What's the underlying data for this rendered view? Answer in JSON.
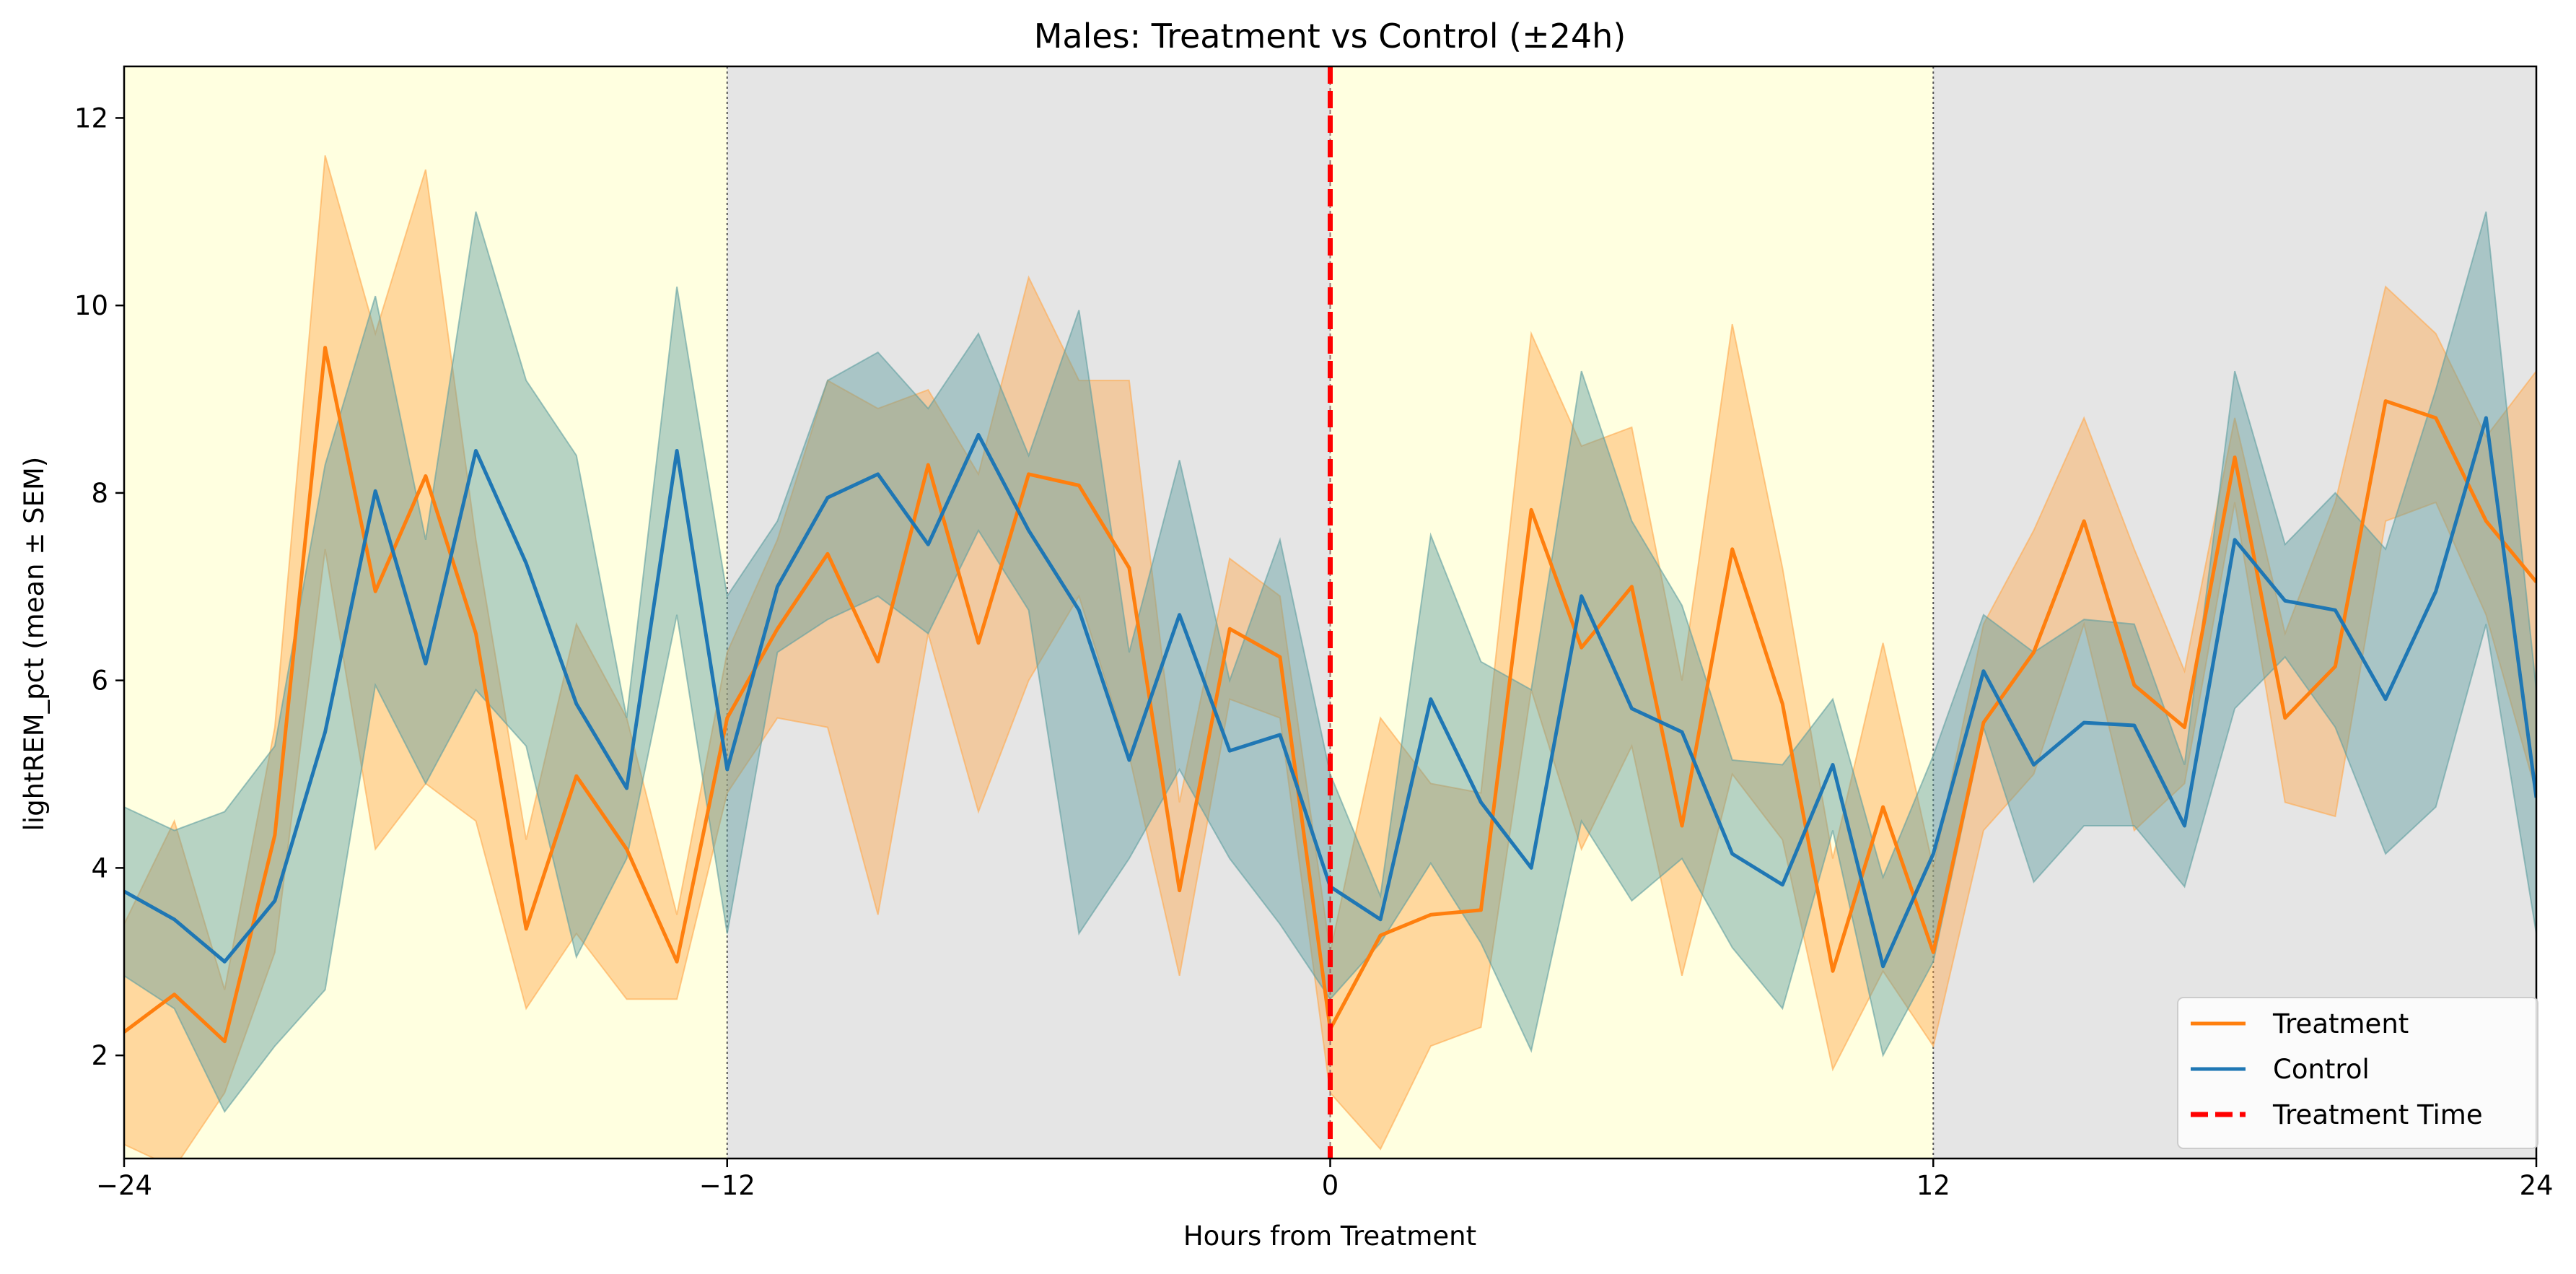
{
  "chart_data": {
    "type": "line",
    "title": "Males: Treatment vs Control (±24h)",
    "xlabel": "Hours from Treatment",
    "ylabel": "lightREM_pct (mean ± SEM)",
    "xlim": [
      -24,
      24
    ],
    "ylim": [
      0.9,
      12.55
    ],
    "xticks": [
      -24,
      -12,
      0,
      12,
      24
    ],
    "xtick_labels": [
      "−24",
      "−12",
      "0",
      "12",
      "24"
    ],
    "yticks": [
      2,
      4,
      6,
      8,
      10,
      12
    ],
    "ytick_labels": [
      "2",
      "4",
      "6",
      "8",
      "10",
      "12"
    ],
    "grid": false,
    "legend_position": "lower-right",
    "background_bands": [
      {
        "phase": "light",
        "x0": -24,
        "x1": -12,
        "color": "#ffffe0"
      },
      {
        "phase": "dark",
        "x0": -12,
        "x1": 0,
        "color": "#e5e5e5"
      },
      {
        "phase": "light",
        "x0": 0,
        "x1": 12,
        "color": "#ffffe0"
      },
      {
        "phase": "dark",
        "x0": 12,
        "x1": 24,
        "color": "#e5e5e5"
      }
    ],
    "x": [
      -24,
      -23,
      -22,
      -21,
      -20,
      -19,
      -18,
      -17,
      -16,
      -15,
      -14,
      -13,
      -12,
      -11,
      -10,
      -9,
      -8,
      -7,
      -6,
      -5,
      -4,
      -3,
      -2,
      -1,
      0,
      1,
      2,
      3,
      4,
      5,
      6,
      7,
      8,
      9,
      10,
      11,
      12,
      13,
      14,
      15,
      16,
      17,
      18,
      19,
      20,
      21,
      22,
      23,
      24
    ],
    "series": [
      {
        "name": "Treatment",
        "color": "#ff7f0e",
        "band_color": "#ffa94d",
        "mean": [
          2.25,
          2.65,
          2.15,
          4.35,
          9.55,
          6.95,
          8.18,
          6.5,
          3.35,
          4.98,
          4.2,
          3.0,
          5.6,
          6.55,
          7.35,
          6.2,
          8.3,
          6.4,
          8.2,
          8.08,
          7.2,
          3.76,
          6.55,
          6.25,
          2.28,
          3.28,
          3.5,
          3.55,
          7.82,
          6.35,
          7.0,
          4.45,
          7.4,
          5.75,
          2.9,
          4.65,
          3.1,
          5.55,
          6.3,
          7.7,
          5.95,
          5.5,
          8.38,
          5.6,
          6.15,
          8.98,
          8.8,
          7.7,
          7.05
        ],
        "upper": [
          3.4,
          4.5,
          2.7,
          5.5,
          11.6,
          9.7,
          11.45,
          7.5,
          4.3,
          6.6,
          5.6,
          3.5,
          6.3,
          7.5,
          9.2,
          8.9,
          9.1,
          8.2,
          10.3,
          9.2,
          9.2,
          4.7,
          7.3,
          6.9,
          3.1,
          5.6,
          4.9,
          4.8,
          9.7,
          8.5,
          8.7,
          6.0,
          9.8,
          7.2,
          4.1,
          6.4,
          4.0,
          6.6,
          7.6,
          8.8,
          7.4,
          6.1,
          8.8,
          6.5,
          7.9,
          10.2,
          9.7,
          8.6,
          9.3
        ],
        "lower": [
          1.05,
          0.8,
          1.6,
          3.1,
          7.4,
          4.2,
          4.9,
          4.5,
          2.5,
          3.3,
          2.6,
          2.6,
          4.8,
          5.6,
          5.5,
          3.5,
          6.5,
          4.6,
          6.0,
          6.9,
          5.2,
          2.85,
          5.8,
          5.6,
          1.6,
          1.0,
          2.1,
          2.3,
          5.9,
          4.2,
          5.3,
          2.85,
          5.0,
          4.3,
          1.85,
          2.9,
          2.1,
          4.4,
          5.0,
          6.6,
          4.4,
          4.9,
          7.9,
          4.7,
          4.55,
          7.7,
          7.9,
          6.7,
          4.8
        ]
      },
      {
        "name": "Control",
        "color": "#1f77b4",
        "band_color": "#5f9ea0",
        "mean": [
          3.75,
          3.45,
          3.0,
          3.65,
          5.45,
          8.02,
          6.18,
          8.45,
          7.25,
          5.75,
          4.85,
          8.45,
          5.05,
          7.0,
          7.95,
          8.2,
          7.45,
          8.62,
          7.6,
          6.75,
          5.15,
          6.7,
          5.25,
          5.42,
          3.8,
          3.45,
          5.8,
          4.7,
          4.0,
          6.9,
          5.7,
          5.45,
          4.15,
          3.82,
          5.1,
          2.95,
          4.15,
          6.1,
          5.1,
          5.55,
          5.52,
          4.45,
          7.5,
          6.85,
          6.75,
          5.8,
          6.95,
          8.8,
          4.75
        ],
        "upper": [
          4.65,
          4.4,
          4.6,
          5.3,
          8.3,
          10.1,
          7.5,
          11.0,
          9.2,
          8.4,
          5.6,
          10.2,
          6.9,
          7.7,
          9.2,
          9.5,
          8.9,
          9.7,
          8.4,
          9.95,
          6.3,
          8.35,
          6.0,
          7.5,
          5.0,
          3.7,
          7.55,
          6.2,
          5.9,
          9.3,
          7.7,
          6.8,
          5.15,
          5.1,
          5.8,
          3.9,
          5.2,
          6.7,
          6.3,
          6.65,
          6.6,
          5.1,
          9.3,
          7.45,
          8.0,
          7.4,
          9.1,
          11.0,
          5.9
        ],
        "lower": [
          2.85,
          2.5,
          1.4,
          2.1,
          2.7,
          5.95,
          4.9,
          5.9,
          5.3,
          3.05,
          4.1,
          6.7,
          3.3,
          6.3,
          6.65,
          6.9,
          6.5,
          7.6,
          6.75,
          3.3,
          4.1,
          5.05,
          4.1,
          3.4,
          2.6,
          3.2,
          4.05,
          3.2,
          2.05,
          4.5,
          3.65,
          4.1,
          3.15,
          2.5,
          4.4,
          2.0,
          3.0,
          5.5,
          3.85,
          4.45,
          4.45,
          3.8,
          5.7,
          6.25,
          5.5,
          4.15,
          4.65,
          6.6,
          3.3
        ]
      }
    ],
    "vline": {
      "name": "Treatment Time",
      "x": 0,
      "color": "#ff0000",
      "style": "dashed"
    },
    "legend": [
      "Treatment",
      "Control",
      "Treatment Time"
    ]
  }
}
